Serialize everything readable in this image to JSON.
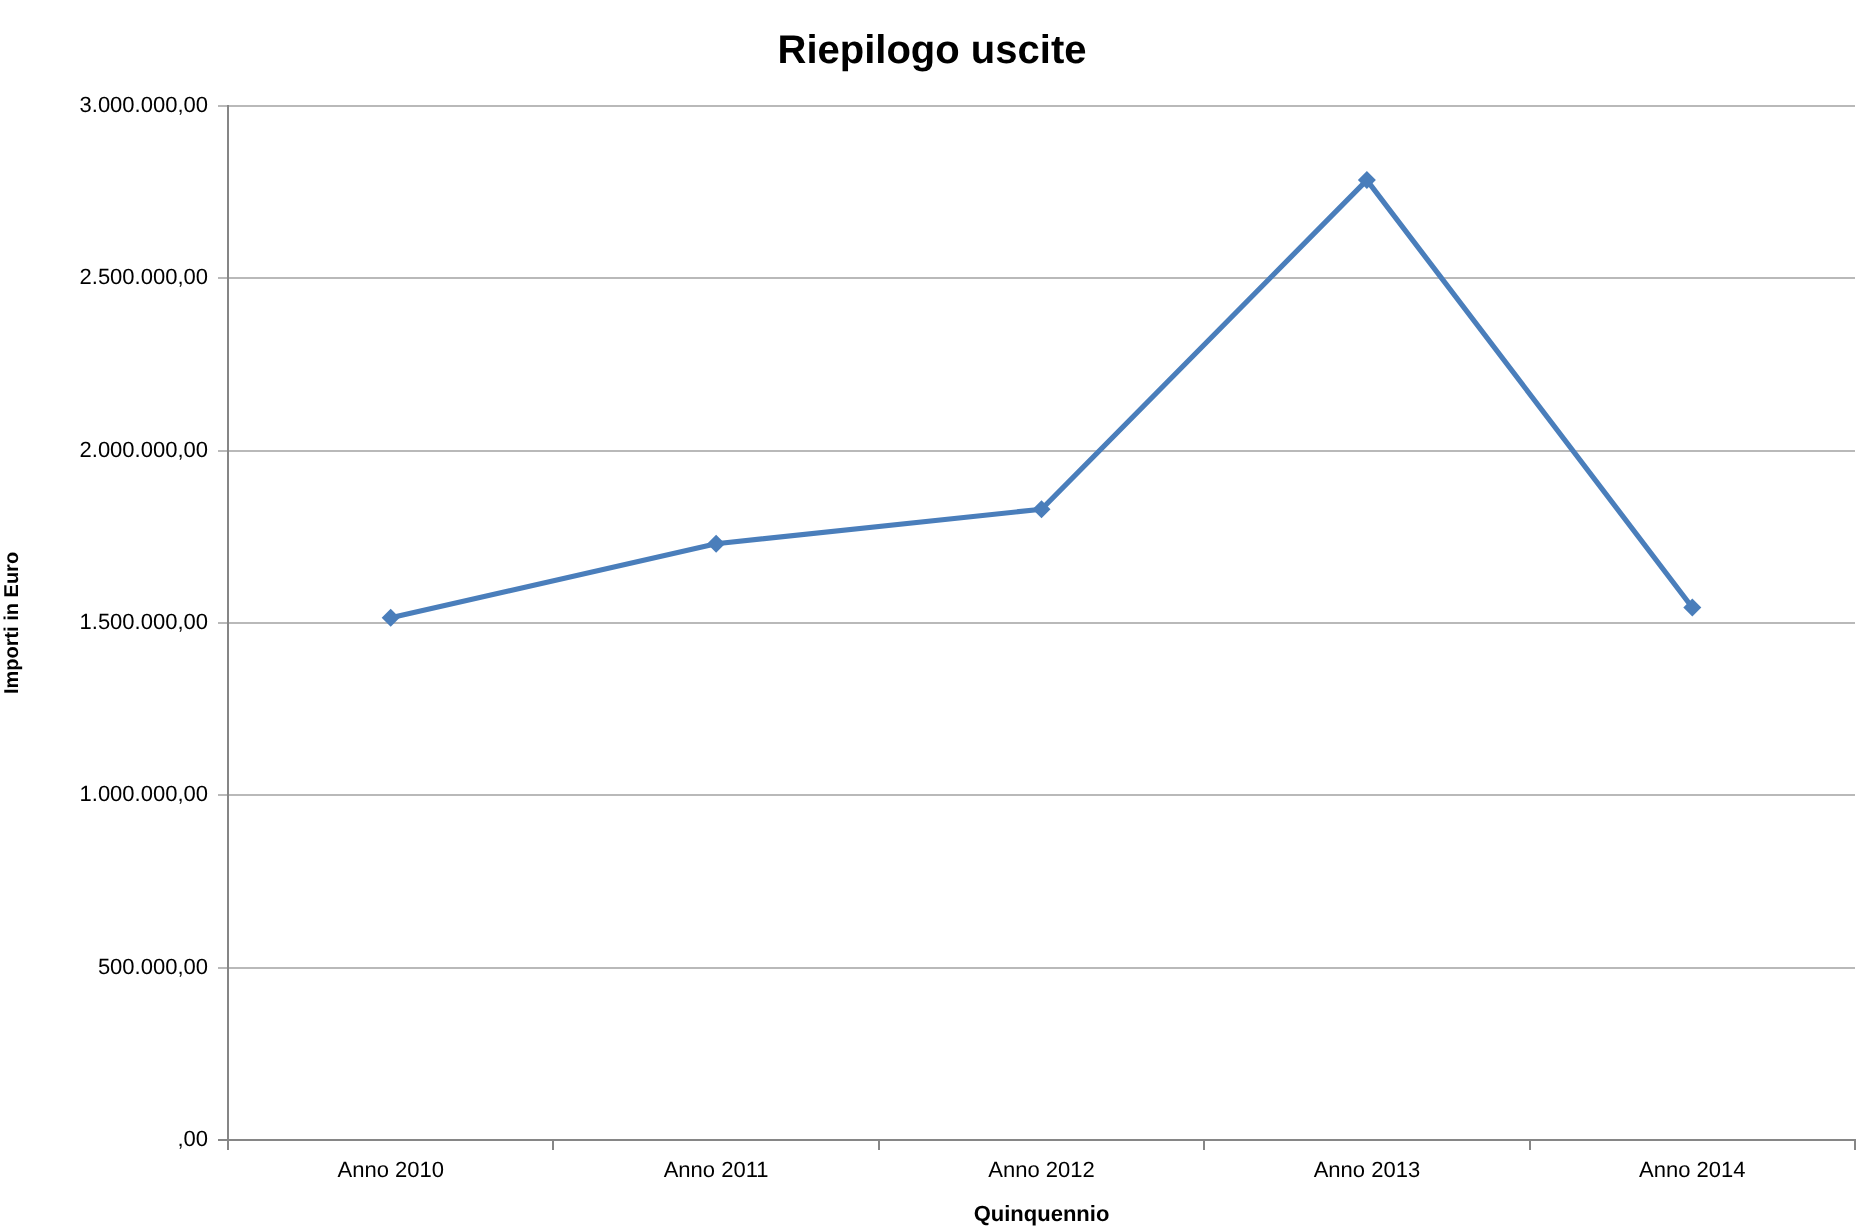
{
  "chart_data": {
    "type": "line",
    "title": "Riepilogo uscite",
    "xlabel": "Quinquennio",
    "ylabel": "Importi in Euro",
    "categories": [
      "Anno 2010",
      "Anno 2011",
      "Anno 2012",
      "Anno 2013",
      "Anno 2014"
    ],
    "series": [
      {
        "color": "#4a7ebb",
        "values": [
          1515000,
          1730000,
          1830000,
          2785000,
          1545000
        ]
      }
    ],
    "ylim": [
      0,
      3000000
    ],
    "yticks": [
      {
        "value": 0,
        "label": ",00"
      },
      {
        "value": 500000,
        "label": "500.000,00"
      },
      {
        "value": 1000000,
        "label": "1.000.000,00"
      },
      {
        "value": 1500000,
        "label": "1.500.000,00"
      },
      {
        "value": 2000000,
        "label": "2.000.000,00"
      },
      {
        "value": 2500000,
        "label": "2.500.000,00"
      },
      {
        "value": 3000000,
        "label": "3.000.000,00"
      }
    ],
    "grid": "y",
    "legend": false,
    "marker": "diamond",
    "line_style": "solid"
  }
}
